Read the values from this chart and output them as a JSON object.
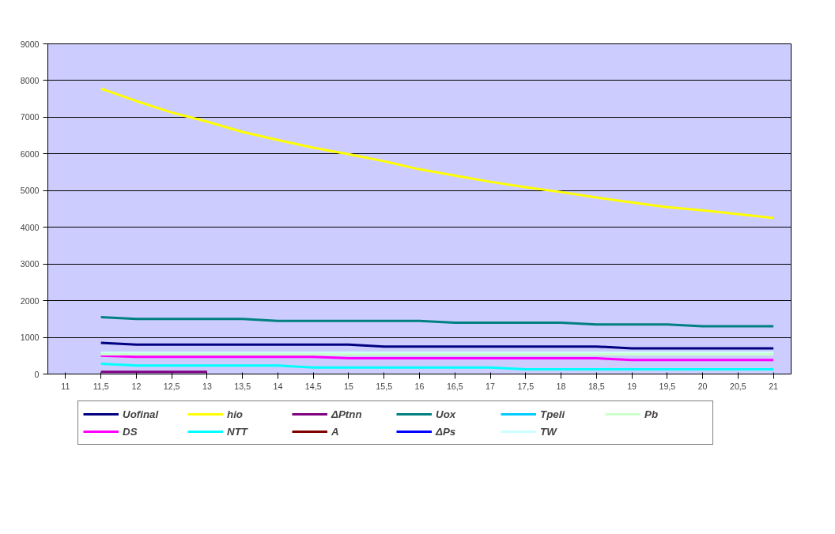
{
  "chart_data": {
    "type": "line",
    "categories": [
      "11",
      "11,5",
      "12",
      "12,5",
      "13",
      "13,5",
      "14",
      "14,5",
      "15",
      "15,5",
      "16",
      "16,5",
      "17",
      "17,5",
      "18",
      "18,5",
      "19",
      "19,5",
      "20",
      "20,5",
      "21"
    ],
    "ylim": [
      0,
      9000
    ],
    "yticks": [
      0,
      1000,
      2000,
      3000,
      4000,
      5000,
      6000,
      7000,
      8000,
      9000
    ],
    "grid": "y",
    "legend": "bottom",
    "marker": "none",
    "line_style": "solid",
    "series": [
      {
        "name": "Uofinal",
        "color": "#000080",
        "values": [
          null,
          850,
          800,
          800,
          800,
          800,
          800,
          800,
          800,
          750,
          750,
          750,
          750,
          750,
          750,
          750,
          700,
          700,
          700,
          700,
          700
        ]
      },
      {
        "name": "DS",
        "color": "#ff00ff",
        "values": [
          null,
          500,
          470,
          470,
          470,
          470,
          470,
          470,
          430,
          430,
          430,
          430,
          430,
          430,
          430,
          430,
          380,
          380,
          380,
          380,
          380
        ]
      },
      {
        "name": "hio",
        "color": "#ffff00",
        "values": [
          null,
          7780,
          7440,
          7130,
          6880,
          6600,
          6380,
          6170,
          5990,
          5800,
          5580,
          5410,
          5240,
          5090,
          4960,
          4810,
          4680,
          4550,
          4460,
          4360,
          4250
        ]
      },
      {
        "name": "NTT",
        "color": "#00ffff",
        "values": [
          null,
          280,
          230,
          230,
          230,
          230,
          230,
          180,
          180,
          180,
          180,
          180,
          180,
          130,
          130,
          130,
          130,
          130,
          130,
          130,
          130
        ]
      },
      {
        "name": "ΔPtnn",
        "color": "#800080",
        "values": [
          null,
          60,
          60,
          60,
          60,
          null,
          null,
          null,
          null,
          null,
          null,
          null,
          null,
          null,
          null,
          null,
          null,
          null,
          null,
          null,
          null
        ]
      },
      {
        "name": "A",
        "color": "#800000",
        "values": [
          null,
          null,
          null,
          null,
          null,
          null,
          null,
          null,
          null,
          null,
          null,
          null,
          null,
          null,
          null,
          null,
          null,
          null,
          null,
          null,
          null
        ]
      },
      {
        "name": "Uox",
        "color": "#008080",
        "values": [
          null,
          1550,
          1500,
          1500,
          1500,
          1500,
          1450,
          1450,
          1450,
          1450,
          1450,
          1400,
          1400,
          1400,
          1400,
          1350,
          1350,
          1350,
          1300,
          1300,
          1300
        ]
      },
      {
        "name": "ΔPs",
        "color": "#0000ff",
        "values": [
          null,
          null,
          null,
          null,
          null,
          null,
          null,
          null,
          null,
          null,
          null,
          null,
          null,
          null,
          null,
          null,
          null,
          null,
          null,
          null,
          null
        ]
      },
      {
        "name": "Tpeli",
        "color": "#00ccff",
        "values": [
          null,
          null,
          null,
          null,
          null,
          null,
          null,
          null,
          null,
          null,
          null,
          null,
          null,
          null,
          null,
          null,
          null,
          null,
          null,
          null,
          null
        ]
      },
      {
        "name": "TW",
        "color": "#ccffff",
        "values": [
          null,
          580,
          580,
          580,
          580,
          580,
          580,
          580,
          580,
          580,
          580,
          580,
          580,
          580,
          580,
          580,
          580,
          580,
          580,
          580,
          580
        ]
      },
      {
        "name": "Pb",
        "color": "#ccffcc",
        "values": [
          null,
          540,
          540,
          540,
          540,
          540,
          540,
          540,
          540,
          540,
          540,
          540,
          540,
          540,
          540,
          540,
          540,
          540,
          540,
          540,
          540
        ]
      }
    ]
  }
}
